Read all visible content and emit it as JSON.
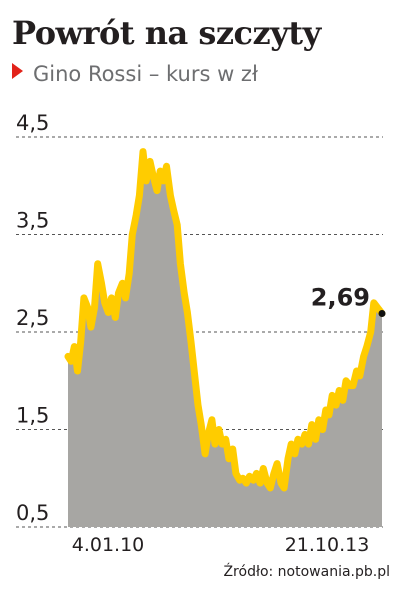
{
  "title": "Powrót na szczyty",
  "subtitle": "Gino Rossi – kurs w zł",
  "source": "Źródło: notowania.pb.pl",
  "colors": {
    "line": "#ffcc00",
    "area": "#a7a6a3",
    "grid": "#555555",
    "marker": "#e2231a",
    "text": "#231f20",
    "subtitle": "#6d6e70"
  },
  "chart_data": {
    "type": "line",
    "title": "Powrót na szczyty",
    "subtitle": "Gino Rossi – kurs w zł",
    "ylim": [
      0.5,
      4.5
    ],
    "yticks": [
      0.5,
      1.5,
      2.5,
      3.5,
      4.5
    ],
    "ytick_labels": [
      "0,5",
      "1,5",
      "2,5",
      "3,5",
      "4,5"
    ],
    "xlim": [
      "2010-01-04",
      "2013-10-21"
    ],
    "xtick_labels": [
      "4.01.10",
      "21.10.13"
    ],
    "grid": "horizontal-dashed",
    "fill": "area-under-line",
    "last_value_label": "2,69",
    "series": [
      {
        "values": [
          [
            "2010-01-04",
            2.25
          ],
          [
            "2010-01-18",
            2.2
          ],
          [
            "2010-02-01",
            2.35
          ],
          [
            "2010-02-15",
            2.1
          ],
          [
            "2010-03-01",
            2.4
          ],
          [
            "2010-03-15",
            2.85
          ],
          [
            "2010-04-01",
            2.75
          ],
          [
            "2010-04-15",
            2.55
          ],
          [
            "2010-05-01",
            2.75
          ],
          [
            "2010-05-15",
            3.2
          ],
          [
            "2010-06-01",
            3.0
          ],
          [
            "2010-06-15",
            2.8
          ],
          [
            "2010-07-01",
            2.7
          ],
          [
            "2010-07-15",
            2.85
          ],
          [
            "2010-08-01",
            2.65
          ],
          [
            "2010-08-15",
            2.9
          ],
          [
            "2010-09-01",
            3.0
          ],
          [
            "2010-09-15",
            2.85
          ],
          [
            "2010-10-01",
            3.1
          ],
          [
            "2010-10-15",
            3.5
          ],
          [
            "2010-11-01",
            3.7
          ],
          [
            "2010-11-15",
            3.9
          ],
          [
            "2010-12-01",
            4.35
          ],
          [
            "2010-12-15",
            4.05
          ],
          [
            "2011-01-01",
            4.25
          ],
          [
            "2011-01-15",
            4.1
          ],
          [
            "2011-02-01",
            3.95
          ],
          [
            "2011-02-15",
            4.15
          ],
          [
            "2011-03-01",
            4.05
          ],
          [
            "2011-03-15",
            4.2
          ],
          [
            "2011-04-01",
            3.9
          ],
          [
            "2011-04-15",
            3.75
          ],
          [
            "2011-05-01",
            3.6
          ],
          [
            "2011-05-15",
            3.2
          ],
          [
            "2011-06-01",
            2.9
          ],
          [
            "2011-06-15",
            2.7
          ],
          [
            "2011-07-01",
            2.4
          ],
          [
            "2011-07-15",
            2.1
          ],
          [
            "2011-08-01",
            1.75
          ],
          [
            "2011-08-15",
            1.55
          ],
          [
            "2011-09-01",
            1.25
          ],
          [
            "2011-09-15",
            1.45
          ],
          [
            "2011-10-01",
            1.6
          ],
          [
            "2011-10-15",
            1.35
          ],
          [
            "2011-11-01",
            1.5
          ],
          [
            "2011-11-15",
            1.35
          ],
          [
            "2011-12-01",
            1.4
          ],
          [
            "2011-12-15",
            1.2
          ],
          [
            "2012-01-01",
            1.3
          ],
          [
            "2012-01-15",
            1.05
          ],
          [
            "2012-02-01",
            0.98
          ],
          [
            "2012-02-15",
            1.0
          ],
          [
            "2012-03-01",
            0.95
          ],
          [
            "2012-03-15",
            1.02
          ],
          [
            "2012-04-01",
            0.98
          ],
          [
            "2012-04-15",
            1.05
          ],
          [
            "2012-05-01",
            0.95
          ],
          [
            "2012-05-15",
            1.1
          ],
          [
            "2012-06-01",
            0.95
          ],
          [
            "2012-06-15",
            0.9
          ],
          [
            "2012-07-01",
            1.05
          ],
          [
            "2012-07-15",
            1.15
          ],
          [
            "2012-08-01",
            0.95
          ],
          [
            "2012-08-15",
            0.9
          ],
          [
            "2012-09-01",
            1.2
          ],
          [
            "2012-09-15",
            1.35
          ],
          [
            "2012-10-01",
            1.25
          ],
          [
            "2012-10-15",
            1.4
          ],
          [
            "2012-11-01",
            1.35
          ],
          [
            "2012-11-15",
            1.45
          ],
          [
            "2012-12-01",
            1.35
          ],
          [
            "2012-12-15",
            1.55
          ],
          [
            "2013-01-01",
            1.4
          ],
          [
            "2013-01-15",
            1.6
          ],
          [
            "2013-02-01",
            1.5
          ],
          [
            "2013-02-15",
            1.7
          ],
          [
            "2013-03-01",
            1.65
          ],
          [
            "2013-03-15",
            1.85
          ],
          [
            "2013-04-01",
            1.75
          ],
          [
            "2013-04-15",
            1.9
          ],
          [
            "2013-05-01",
            1.8
          ],
          [
            "2013-05-15",
            2.0
          ],
          [
            "2013-06-01",
            1.95
          ],
          [
            "2013-06-15",
            1.95
          ],
          [
            "2013-07-01",
            2.1
          ],
          [
            "2013-07-15",
            2.05
          ],
          [
            "2013-08-01",
            2.25
          ],
          [
            "2013-08-15",
            2.35
          ],
          [
            "2013-09-01",
            2.5
          ],
          [
            "2013-09-15",
            2.8
          ],
          [
            "2013-10-01",
            2.75
          ],
          [
            "2013-10-21",
            2.69
          ]
        ]
      }
    ]
  }
}
